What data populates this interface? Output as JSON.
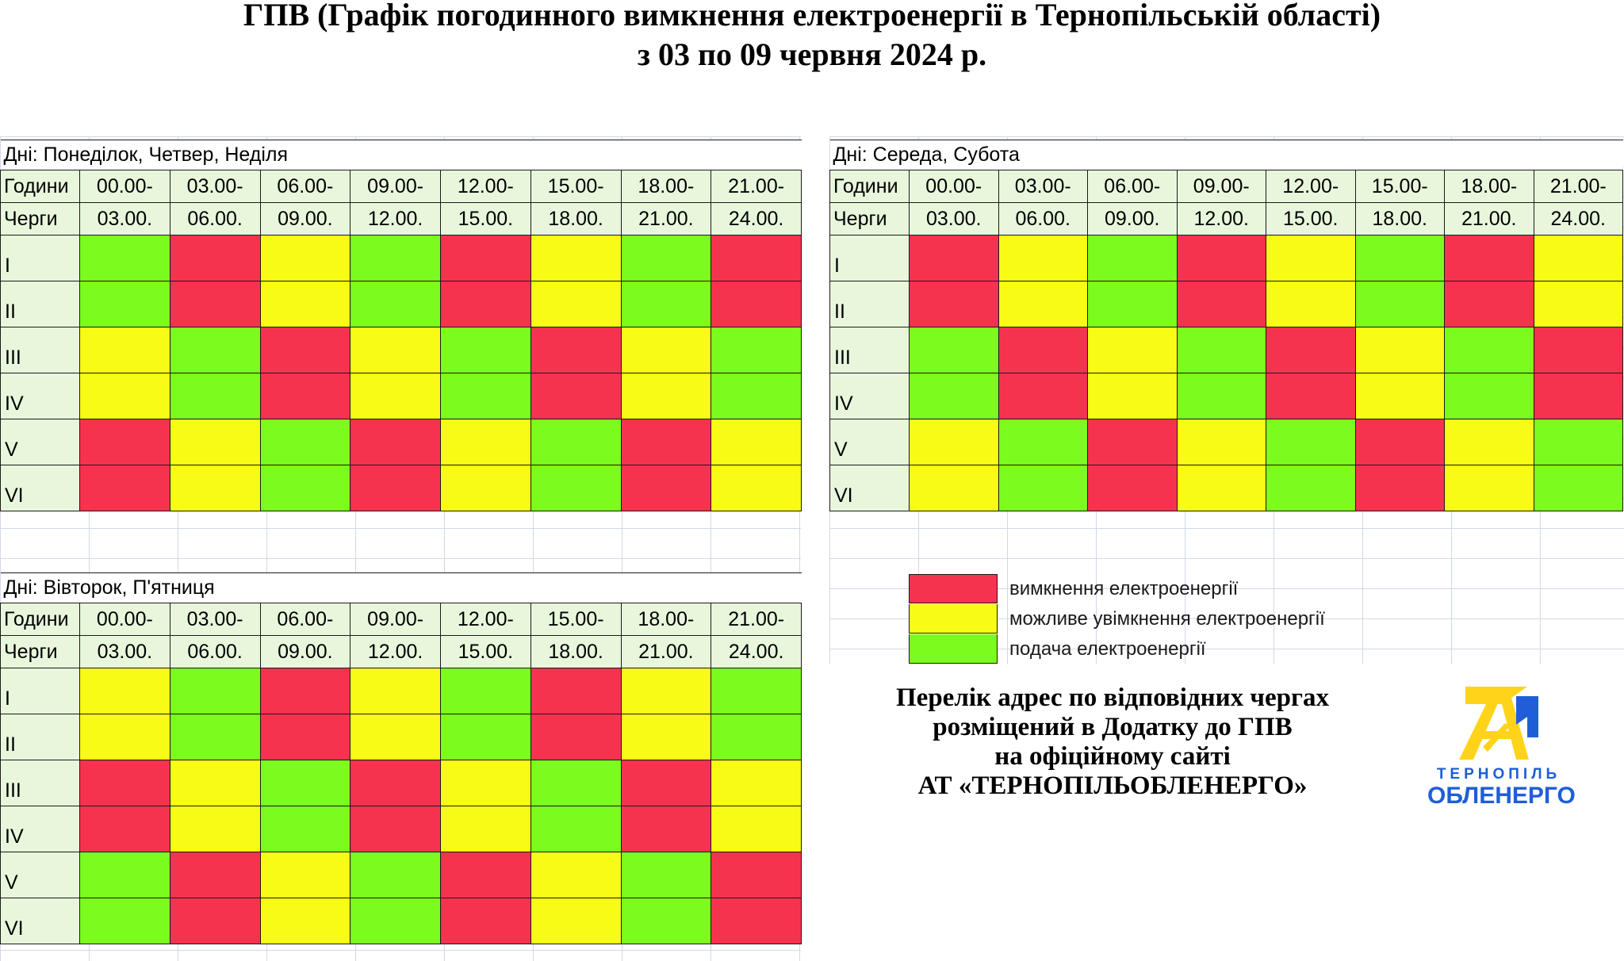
{
  "title": {
    "line1": "ГПВ (Графік погодинного вимкнення електроенергії в Тернопільській області)",
    "line2": "з 03 по 09 червня 2024 р."
  },
  "labels": {
    "hours": "Години",
    "queues": "Черги"
  },
  "time_slots": [
    {
      "from": "00.00-",
      "to": "03.00."
    },
    {
      "from": "03.00-",
      "to": "06.00."
    },
    {
      "from": "06.00-",
      "to": "09.00."
    },
    {
      "from": "09.00-",
      "to": "12.00."
    },
    {
      "from": "12.00-",
      "to": "15.00."
    },
    {
      "from": "15.00-",
      "to": "18.00."
    },
    {
      "from": "18.00-",
      "to": "21.00."
    },
    {
      "from": "21.00-",
      "to": "24.00."
    }
  ],
  "queues": [
    "I",
    "II",
    "III",
    "IV",
    "V",
    "VI"
  ],
  "status_colors": {
    "off": "#f6334f",
    "maybe": "#f7fb16",
    "on": "#7bfb1e"
  },
  "schedules": [
    {
      "id": "mon-thu-sun",
      "days_label": "Дні: Понеділок, Четвер, Неділя",
      "rows": [
        [
          "on",
          "off",
          "maybe",
          "on",
          "off",
          "maybe",
          "on",
          "off"
        ],
        [
          "on",
          "off",
          "maybe",
          "on",
          "off",
          "maybe",
          "on",
          "off"
        ],
        [
          "maybe",
          "on",
          "off",
          "maybe",
          "on",
          "off",
          "maybe",
          "on"
        ],
        [
          "maybe",
          "on",
          "off",
          "maybe",
          "on",
          "off",
          "maybe",
          "on"
        ],
        [
          "off",
          "maybe",
          "on",
          "off",
          "maybe",
          "on",
          "off",
          "maybe"
        ],
        [
          "off",
          "maybe",
          "on",
          "off",
          "maybe",
          "on",
          "off",
          "maybe"
        ]
      ]
    },
    {
      "id": "wed-sat",
      "days_label": "Дні: Середа, Субота",
      "rows": [
        [
          "off",
          "maybe",
          "on",
          "off",
          "maybe",
          "on",
          "off",
          "maybe"
        ],
        [
          "off",
          "maybe",
          "on",
          "off",
          "maybe",
          "on",
          "off",
          "maybe"
        ],
        [
          "on",
          "off",
          "maybe",
          "on",
          "off",
          "maybe",
          "on",
          "off"
        ],
        [
          "on",
          "off",
          "maybe",
          "on",
          "off",
          "maybe",
          "on",
          "off"
        ],
        [
          "maybe",
          "on",
          "off",
          "maybe",
          "on",
          "off",
          "maybe",
          "on"
        ],
        [
          "maybe",
          "on",
          "off",
          "maybe",
          "on",
          "off",
          "maybe",
          "on"
        ]
      ]
    },
    {
      "id": "tue-fri",
      "days_label": "Дні: Вівторок, П'ятниця",
      "rows": [
        [
          "maybe",
          "on",
          "off",
          "maybe",
          "on",
          "off",
          "maybe",
          "on"
        ],
        [
          "maybe",
          "on",
          "off",
          "maybe",
          "on",
          "off",
          "maybe",
          "on"
        ],
        [
          "off",
          "maybe",
          "on",
          "off",
          "maybe",
          "on",
          "off",
          "maybe"
        ],
        [
          "off",
          "maybe",
          "on",
          "off",
          "maybe",
          "on",
          "off",
          "maybe"
        ],
        [
          "on",
          "off",
          "maybe",
          "on",
          "off",
          "maybe",
          "on",
          "off"
        ],
        [
          "on",
          "off",
          "maybe",
          "on",
          "off",
          "maybe",
          "on",
          "off"
        ]
      ]
    }
  ],
  "legend": [
    {
      "status": "off",
      "label": "вимкнення електроенергії"
    },
    {
      "status": "maybe",
      "label": "можливе увімкнення електроенергії"
    },
    {
      "status": "on",
      "label": "подача електроенергії"
    }
  ],
  "notice": {
    "line1": "Перелік адрес по відповідних чергах",
    "line2": "розміщений в Додатку до ГПВ",
    "line3": "на офіційному сайті",
    "line4": "АТ «ТЕРНОПІЛЬОБЛЕНЕРГО»"
  },
  "logo": {
    "line1": "ТЕРНОПІЛЬ",
    "line2": "ОБЛЕНЕРГО"
  }
}
